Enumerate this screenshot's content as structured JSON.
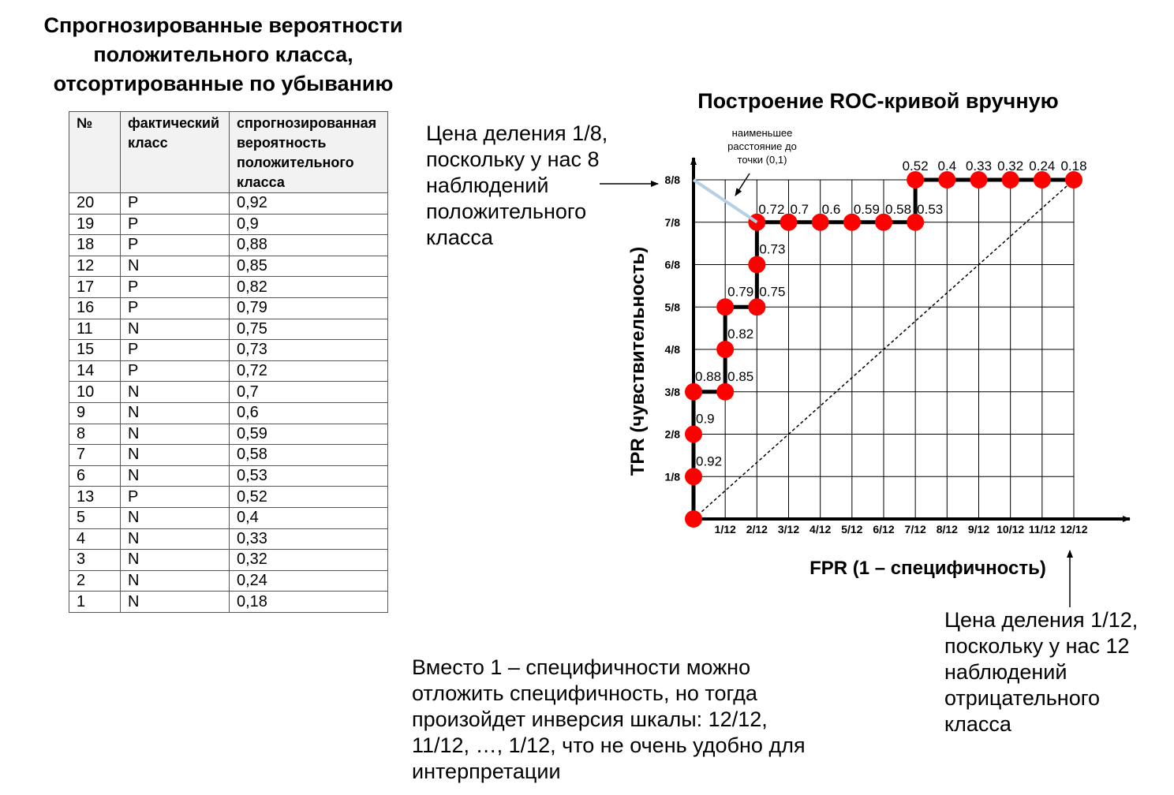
{
  "table_title_lines": [
    "Спрогнозированные вероятности",
    "положительного класса,",
    "отсортированные по убыванию"
  ],
  "table": {
    "headers": [
      [
        "№"
      ],
      [
        "фактический",
        "класс"
      ],
      [
        "спрогнозированная",
        "вероятность",
        "положительного",
        "класса"
      ]
    ],
    "rows": [
      [
        "20",
        "P",
        "0,92"
      ],
      [
        "19",
        "P",
        "0,9"
      ],
      [
        "18",
        "P",
        "0,88"
      ],
      [
        "12",
        "N",
        "0,85"
      ],
      [
        "17",
        "P",
        "0,82"
      ],
      [
        "16",
        "P",
        "0,79"
      ],
      [
        "11",
        "N",
        "0,75"
      ],
      [
        "15",
        "P",
        "0,73"
      ],
      [
        "14",
        "P",
        "0,72"
      ],
      [
        "10",
        "N",
        "0,7"
      ],
      [
        "9",
        "N",
        "0,6"
      ],
      [
        "8",
        "N",
        "0,59"
      ],
      [
        "7",
        "N",
        "0,58"
      ],
      [
        "6",
        "N",
        "0,53"
      ],
      [
        "13",
        "P",
        "0,52"
      ],
      [
        "5",
        "N",
        "0,4"
      ],
      [
        "4",
        "N",
        "0,33"
      ],
      [
        "3",
        "N",
        "0,32"
      ],
      [
        "2",
        "N",
        "0,24"
      ],
      [
        "1",
        "N",
        "0,18"
      ]
    ]
  },
  "notes": {
    "y_division": [
      "Цена деления 1/8,",
      "поскольку у нас 8",
      "наблюдений",
      "положительного",
      "класса"
    ],
    "x_division": [
      "Цена деления 1/12,",
      "поскольку у нас 12",
      "наблюдений",
      "отрицательного",
      "класса"
    ],
    "inversion": [
      "Вместо 1 – специфичности можно",
      "отложить специфичность, но тогда",
      "произойдет инверсия шкалы: 12/12,",
      "11/12, …, 1/12, что не очень удобно для",
      "интерпретации"
    ]
  },
  "colors": {
    "point": "#ff0000",
    "curve": "#000000",
    "distance_line": "#b4cfe6",
    "grid": "#000000",
    "table_header_bg": "#f2f2f2"
  },
  "chart_data": {
    "type": "line",
    "title": "Построение ROC-кривой вручную",
    "xlabel": "FPR (1 – специфичность)",
    "ylabel": "TPR (чувствительность)",
    "xlim": [
      0,
      1
    ],
    "ylim": [
      0,
      1
    ],
    "grid": true,
    "x_ticks": [
      "1/12",
      "2/12",
      "3/12",
      "4/12",
      "5/12",
      "6/12",
      "7/12",
      "8/12",
      "9/12",
      "10/12",
      "11/12",
      "12/12"
    ],
    "y_ticks": [
      "1/8",
      "2/8",
      "3/8",
      "4/8",
      "5/8",
      "6/8",
      "7/8",
      "8/8"
    ],
    "points": [
      {
        "x": 0,
        "y": 0,
        "label": ""
      },
      {
        "x": 0,
        "y": 0.125,
        "label": "0.92"
      },
      {
        "x": 0,
        "y": 0.25,
        "label": "0.9"
      },
      {
        "x": 0,
        "y": 0.375,
        "label": "0.88"
      },
      {
        "x": 0.0833,
        "y": 0.375,
        "label": "0.85"
      },
      {
        "x": 0.0833,
        "y": 0.5,
        "label": "0.82"
      },
      {
        "x": 0.0833,
        "y": 0.625,
        "label": "0.79"
      },
      {
        "x": 0.1667,
        "y": 0.625,
        "label": "0.75"
      },
      {
        "x": 0.1667,
        "y": 0.75,
        "label": "0.73"
      },
      {
        "x": 0.1667,
        "y": 0.875,
        "label": "0.72"
      },
      {
        "x": 0.25,
        "y": 0.875,
        "label": "0.7"
      },
      {
        "x": 0.3333,
        "y": 0.875,
        "label": "0.6"
      },
      {
        "x": 0.4167,
        "y": 0.875,
        "label": "0.59"
      },
      {
        "x": 0.5,
        "y": 0.875,
        "label": "0.58"
      },
      {
        "x": 0.5833,
        "y": 0.875,
        "label": "0.53"
      },
      {
        "x": 0.5833,
        "y": 1,
        "label": "0.52"
      },
      {
        "x": 0.6667,
        "y": 1,
        "label": "0.4"
      },
      {
        "x": 0.75,
        "y": 1,
        "label": "0.33"
      },
      {
        "x": 0.8333,
        "y": 1,
        "label": "0.32"
      },
      {
        "x": 0.9167,
        "y": 1,
        "label": "0.24"
      },
      {
        "x": 1,
        "y": 1,
        "label": "0.18"
      }
    ],
    "annotation": "наименьшее расстояние до точки (0,1)"
  }
}
